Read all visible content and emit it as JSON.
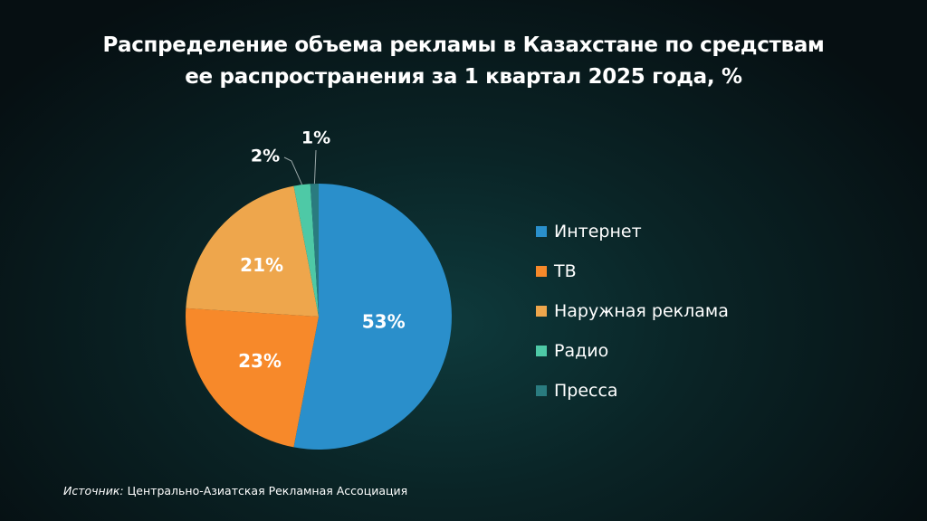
{
  "title": {
    "line1": "Распределение объема рекламы в Казахстане по средствам",
    "line2": "ее распространения за 1 квартал 2025 года, %"
  },
  "chart_data": {
    "type": "pie",
    "categories": [
      "Интернет",
      "ТВ",
      "Наружная реклама",
      "Радио",
      "Пресса"
    ],
    "values": [
      53,
      23,
      21,
      2,
      1
    ],
    "data_labels": [
      "53%",
      "23%",
      "21%",
      "2%",
      "1%"
    ],
    "colors": [
      "#2a8fcb",
      "#f7892a",
      "#eea64c",
      "#4ec9a6",
      "#2a7b7f"
    ],
    "start_angle_deg": 0,
    "direction": "clockwise",
    "legend_position": "right"
  },
  "legend": {
    "items": [
      {
        "label": "Интернет",
        "color": "#2a8fcb"
      },
      {
        "label": "ТВ",
        "color": "#f7892a"
      },
      {
        "label": "Наружная реклама",
        "color": "#eea64c"
      },
      {
        "label": "Радио",
        "color": "#4ec9a6"
      },
      {
        "label": "Пресса",
        "color": "#2a7b7f"
      }
    ]
  },
  "source": {
    "prefix": "Источник:",
    "name": "Центрально-Азиатская Рекламная Ассоциация"
  }
}
